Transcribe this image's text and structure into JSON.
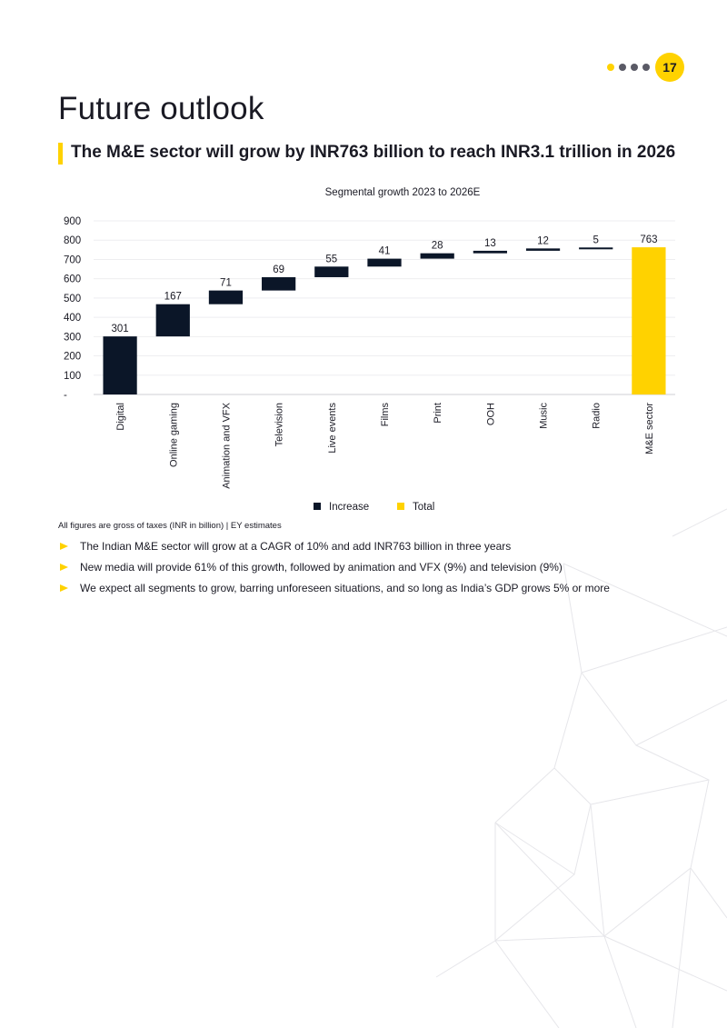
{
  "page": {
    "number": "17",
    "title": "Future outlook",
    "subtitle": "The M&E sector will grow by INR763 billion to reach INR3.1 trillion in 2026",
    "footnote": "All figures are gross of taxes (INR in billion) | EY estimates",
    "bullets": [
      "The Indian M&E sector will grow at a CAGR of 10% and add INR763 billion in three years",
      "New media will provide 61% of this growth, followed by animation and VFX (9%) and television (9%)",
      "We expect all segments to grow, barring unforeseen situations, and so long as India’s GDP grows 5% or more"
    ]
  },
  "colors": {
    "accent": "#ffd200",
    "increase": "#0b1628",
    "total": "#ffd200",
    "text": "#1a1a24"
  },
  "chart_data": {
    "type": "bar",
    "subtype": "waterfall",
    "title": "Segmental growth 2023 to 2026E",
    "categories": [
      "Digital",
      "Online gaming",
      "Animation and VFX",
      "Television",
      "Live events",
      "Films",
      "Print",
      "OOH",
      "Music",
      "Radio",
      "M&E sector"
    ],
    "values": [
      301,
      167,
      71,
      69,
      55,
      41,
      28,
      13,
      12,
      5,
      763
    ],
    "data_labels": [
      "301",
      "167",
      "71",
      "69",
      "55",
      "41",
      "28",
      "13",
      "12",
      "5",
      "763"
    ],
    "kinds": [
      "increase",
      "increase",
      "increase",
      "increase",
      "increase",
      "increase",
      "increase",
      "increase",
      "increase",
      "increase",
      "total"
    ],
    "ylim": [
      0,
      900
    ],
    "yticks": [
      0,
      100,
      200,
      300,
      400,
      500,
      600,
      700,
      800,
      900
    ],
    "ytick_labels": [
      "-",
      "100",
      "200",
      "300",
      "400",
      "500",
      "600",
      "700",
      "800",
      "900"
    ],
    "legend": [
      {
        "name": "Increase",
        "kind": "increase"
      },
      {
        "name": "Total",
        "kind": "total"
      }
    ],
    "legend_position": "bottom",
    "grid": true,
    "xlabel": "",
    "ylabel": ""
  }
}
